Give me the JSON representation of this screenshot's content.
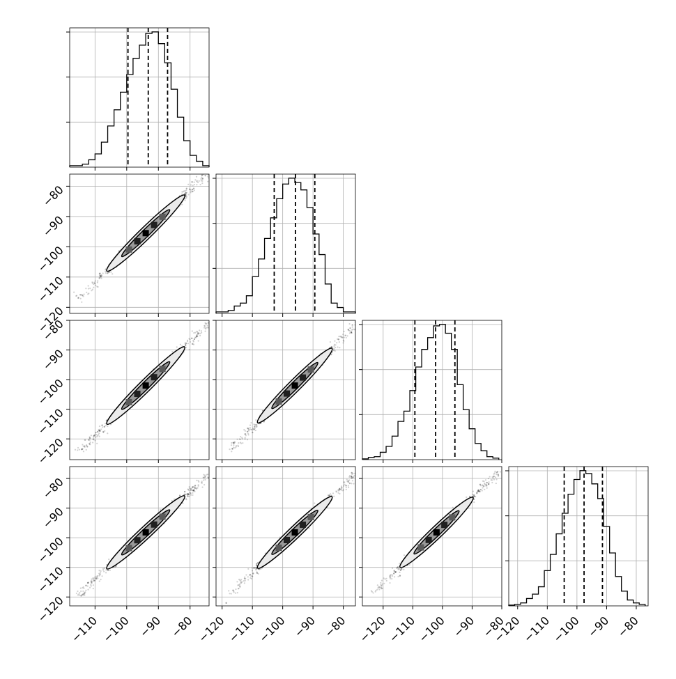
{
  "chart_data": {
    "type": "corner",
    "parameters": 4,
    "colors": {
      "line": "#000000",
      "grid": "#b0b0b0",
      "points": "#000000",
      "background": "#ffffff"
    },
    "grid": true,
    "x_ticks": [
      {
        "values": [
          -110,
          -100,
          -90,
          -80
        ],
        "labels": [
          "−110",
          "−100",
          "−90",
          "−80"
        ]
      },
      {
        "values": [
          -120,
          -110,
          -100,
          -90,
          -80
        ],
        "labels": [
          "−120",
          "−110",
          "−100",
          "−90",
          "−80"
        ]
      },
      {
        "values": [
          -120,
          -110,
          -100,
          -90,
          -80
        ],
        "labels": [
          "−120",
          "−110",
          "−100",
          "−90",
          "−80"
        ]
      },
      {
        "values": [
          -120,
          -110,
          -100,
          -90,
          -80
        ],
        "labels": [
          "−120",
          "−110",
          "−100",
          "−90",
          "−80"
        ]
      }
    ],
    "y_ticks": [
      null,
      {
        "values": [
          -80,
          -90,
          -100,
          -110,
          -120
        ],
        "labels": [
          "−80",
          "−90",
          "−100",
          "−110",
          "−120"
        ]
      },
      {
        "values": [
          -80,
          -90,
          -100,
          -110,
          -120
        ],
        "labels": [
          "−80",
          "−90",
          "−100",
          "−110",
          "−120"
        ]
      },
      {
        "values": [
          -80,
          -90,
          -100,
          -110,
          -120
        ],
        "labels": [
          "−80",
          "−90",
          "−100",
          "−110",
          "−120"
        ]
      }
    ],
    "ranges": [
      [
        -118,
        -74
      ],
      [
        -122,
        -76
      ],
      [
        -127,
        -80
      ],
      [
        -123,
        -76
      ]
    ],
    "histograms": [
      {
        "param": 0,
        "bin_edges": [
          -118,
          -116,
          -114,
          -112,
          -110,
          -108,
          -106,
          -104,
          -102,
          -100,
          -98,
          -96,
          -94,
          -92,
          -90,
          -88,
          -86,
          -84,
          -82,
          -80,
          -78,
          -76,
          -74
        ],
        "counts": [
          1,
          1,
          2,
          5,
          9,
          17,
          28,
          39,
          51,
          63,
          74,
          83,
          91,
          92,
          84,
          71,
          53,
          34,
          18,
          8,
          4,
          1
        ],
        "quantiles": [
          -99.6,
          -93.2,
          -87.1
        ]
      },
      {
        "param": 1,
        "bin_edges": [
          -122,
          -120,
          -118,
          -116,
          -114,
          -112,
          -110,
          -108,
          -106,
          -104,
          -102,
          -100,
          -98,
          -96,
          -94,
          -92,
          -90,
          -88,
          -86,
          -84,
          -82,
          -80,
          -78,
          -76
        ],
        "counts": [
          1,
          1,
          2,
          5,
          7,
          12,
          25,
          37,
          51,
          65,
          78,
          88,
          92,
          89,
          84,
          72,
          54,
          40,
          20,
          7,
          4,
          1,
          1
        ],
        "quantiles": [
          -102.8,
          -95.8,
          -89.4
        ]
      },
      {
        "param": 2,
        "bin_edges": [
          -127,
          -125,
          -123,
          -121,
          -119,
          -117,
          -115,
          -113,
          -111,
          -109,
          -107,
          -105,
          -103,
          -101,
          -99,
          -97,
          -95,
          -93,
          -91,
          -89,
          -87,
          -85,
          -83,
          -81
        ],
        "counts": [
          0.5,
          1.5,
          2,
          5,
          9,
          16,
          26,
          33,
          47,
          63,
          75,
          83,
          91,
          92,
          86,
          75,
          51,
          34,
          21,
          11,
          6,
          2,
          1
        ],
        "quantiles": [
          -109.3,
          -102.3,
          -95.8
        ]
      },
      {
        "param": 3,
        "bin_edges": [
          -123,
          -121,
          -119,
          -117,
          -115,
          -113,
          -111,
          -109,
          -107,
          -105,
          -103,
          -101,
          -99,
          -97,
          -95,
          -93,
          -91,
          -89,
          -87,
          -85,
          -83,
          -81,
          -79,
          -77
        ],
        "counts": [
          0.5,
          1,
          2,
          5,
          8,
          13,
          24,
          35,
          49,
          63,
          76,
          86,
          92,
          90,
          83,
          73,
          54,
          36,
          20,
          10,
          4,
          2,
          1
        ],
        "quantiles": [
          -104.3,
          -97.6,
          -91.4
        ]
      }
    ],
    "pairs": [
      {
        "x_param": 0,
        "y_param": 1,
        "center": [
          -94,
          -95.5
        ],
        "slope": 1.02,
        "extent": [
          -119,
          -74
        ]
      },
      {
        "x_param": 0,
        "y_param": 2,
        "center": [
          -94,
          -102
        ],
        "slope": 1.06,
        "extent": [
          -119,
          -74
        ]
      },
      {
        "x_param": 1,
        "y_param": 2,
        "center": [
          -96,
          -102
        ],
        "slope": 1.02,
        "extent": [
          -122,
          -77
        ]
      },
      {
        "x_param": 0,
        "y_param": 3,
        "center": [
          -94,
          -98.2
        ],
        "slope": 1.0,
        "extent": [
          -119,
          -74
        ]
      },
      {
        "x_param": 1,
        "y_param": 3,
        "center": [
          -96,
          -98.2
        ],
        "slope": 0.98,
        "extent": [
          -122,
          -77
        ]
      },
      {
        "x_param": 2,
        "y_param": 3,
        "center": [
          -102,
          -98.2
        ],
        "slope": 0.96,
        "extent": [
          -126,
          -81
        ]
      }
    ]
  }
}
